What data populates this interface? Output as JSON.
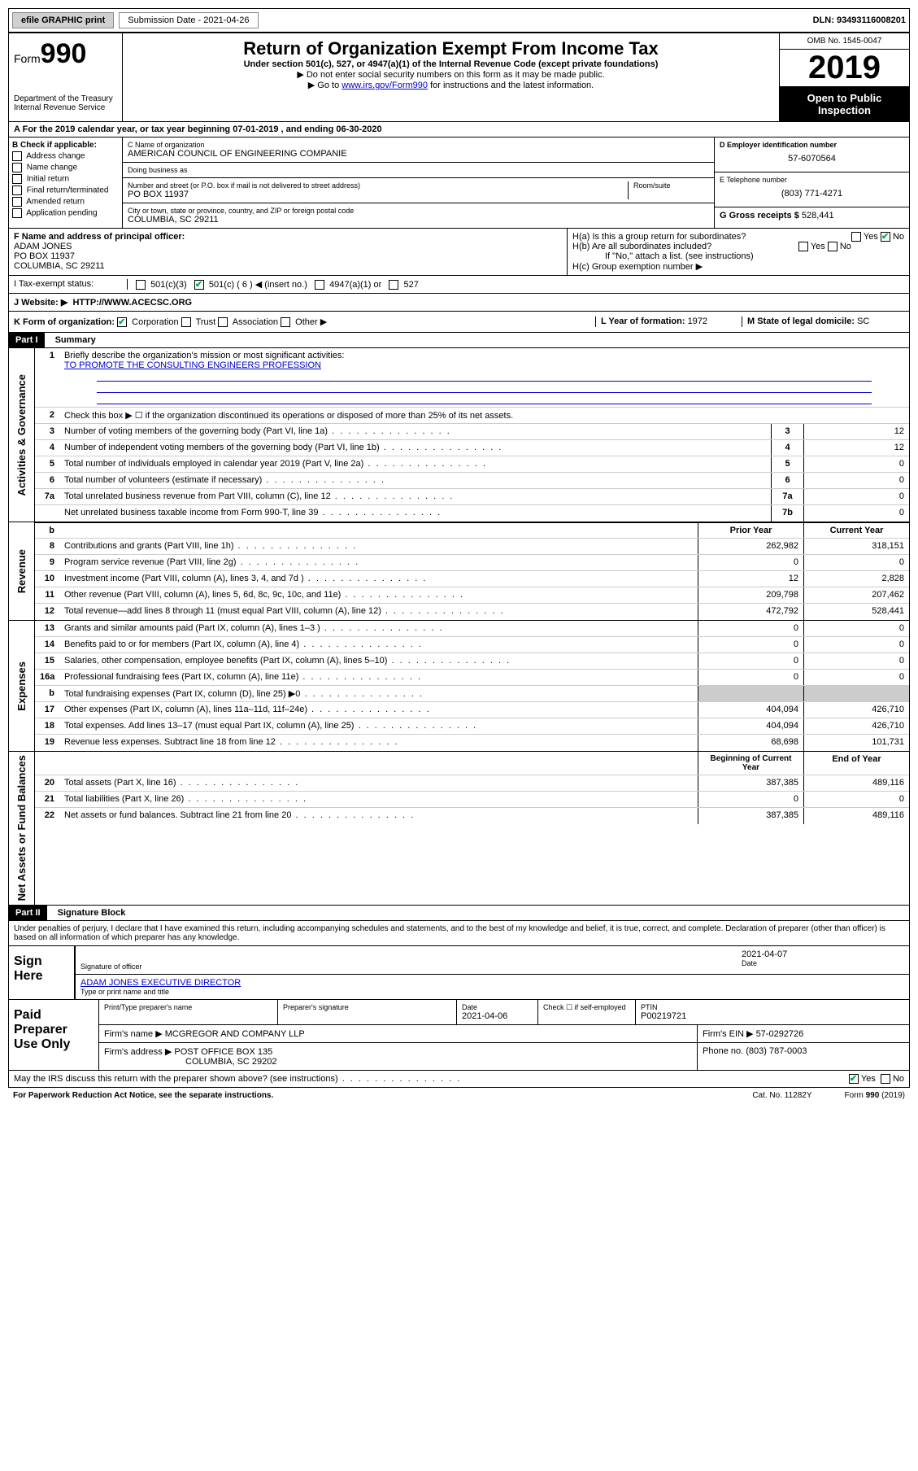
{
  "topbar": {
    "efile": "efile GRAPHIC print",
    "submission_label": "Submission Date - 2021-04-26",
    "dln": "DLN: 93493116008201"
  },
  "header": {
    "form_word": "Form",
    "form_num": "990",
    "dept": "Department of the Treasury\nInternal Revenue Service",
    "title": "Return of Organization Exempt From Income Tax",
    "subtitle": "Under section 501(c), 527, or 4947(a)(1) of the Internal Revenue Code (except private foundations)",
    "note1": "▶ Do not enter social security numbers on this form as it may be made public.",
    "note2_pre": "▶ Go to ",
    "note2_link": "www.irs.gov/Form990",
    "note2_post": " for instructions and the latest information.",
    "omb": "OMB No. 1545-0047",
    "year": "2019",
    "inspection": "Open to Public Inspection"
  },
  "period": {
    "text": "For the 2019 calendar year, or tax year beginning 07-01-2019   , and ending 06-30-2020"
  },
  "checkboxes_b": {
    "label": "B Check if applicable:",
    "items": [
      "Address change",
      "Name change",
      "Initial return",
      "Final return/terminated",
      "Amended return",
      "Application pending"
    ]
  },
  "org": {
    "name_label": "C Name of organization",
    "name": "AMERICAN COUNCIL OF ENGINEERING COMPANIE",
    "dba_label": "Doing business as",
    "dba": "",
    "street_label": "Number and street (or P.O. box if mail is not delivered to street address)",
    "room_label": "Room/suite",
    "street": "PO BOX 11937",
    "city_label": "City or town, state or province, country, and ZIP or foreign postal code",
    "city": "COLUMBIA, SC  29211"
  },
  "ein": {
    "label": "D Employer identification number",
    "value": "57-6070564"
  },
  "phone": {
    "label": "E Telephone number",
    "value": "(803) 771-4271"
  },
  "gross": {
    "label": "G Gross receipts $",
    "value": "528,441"
  },
  "officer": {
    "label": "F Name and address of principal officer:",
    "name": "ADAM JONES",
    "addr1": "PO BOX 11937",
    "addr2": "COLUMBIA, SC  29211"
  },
  "h": {
    "a_label": "H(a)  Is this a group return for subordinates?",
    "a_yes": "Yes",
    "a_no": "No",
    "b_label": "H(b)  Are all subordinates included?",
    "b_note": "If \"No,\" attach a list. (see instructions)",
    "c_label": "H(c)  Group exemption number ▶"
  },
  "status": {
    "label": "Tax-exempt status:",
    "opt1": "501(c)(3)",
    "opt2": "501(c) ( 6 ) ◀ (insert no.)",
    "opt3": "4947(a)(1) or",
    "opt4": "527"
  },
  "website": {
    "label": "J   Website: ▶",
    "value": "HTTP://WWW.ACECSC.ORG"
  },
  "formorg": {
    "label": "K Form of organization:",
    "opts": [
      "Corporation",
      "Trust",
      "Association",
      "Other ▶"
    ],
    "year_label": "L Year of formation:",
    "year": "1972",
    "state_label": "M State of legal domicile:",
    "state": "SC"
  },
  "part1": {
    "header": "Part I",
    "title": "Summary",
    "mission_label": "Briefly describe the organization's mission or most significant activities:",
    "mission": "TO PROMOTE THE CONSULTING ENGINEERS PROFESSION",
    "line2": "Check this box ▶ ☐  if the organization discontinued its operations or disposed of more than 25% of its net assets."
  },
  "governance_lines": [
    {
      "n": "3",
      "t": "Number of voting members of the governing body (Part VI, line 1a)",
      "box": "3",
      "v": "12"
    },
    {
      "n": "4",
      "t": "Number of independent voting members of the governing body (Part VI, line 1b)",
      "box": "4",
      "v": "12"
    },
    {
      "n": "5",
      "t": "Total number of individuals employed in calendar year 2019 (Part V, line 2a)",
      "box": "5",
      "v": "0"
    },
    {
      "n": "6",
      "t": "Total number of volunteers (estimate if necessary)",
      "box": "6",
      "v": "0"
    },
    {
      "n": "7a",
      "t": "Total unrelated business revenue from Part VIII, column (C), line 12",
      "box": "7a",
      "v": "0"
    },
    {
      "n": "",
      "t": "Net unrelated business taxable income from Form 990-T, line 39",
      "box": "7b",
      "v": "0"
    }
  ],
  "year_cols": {
    "prior": "Prior Year",
    "current": "Current Year"
  },
  "revenue_lines": [
    {
      "n": "8",
      "t": "Contributions and grants (Part VIII, line 1h)",
      "p": "262,982",
      "c": "318,151"
    },
    {
      "n": "9",
      "t": "Program service revenue (Part VIII, line 2g)",
      "p": "0",
      "c": "0"
    },
    {
      "n": "10",
      "t": "Investment income (Part VIII, column (A), lines 3, 4, and 7d )",
      "p": "12",
      "c": "2,828"
    },
    {
      "n": "11",
      "t": "Other revenue (Part VIII, column (A), lines 5, 6d, 8c, 9c, 10c, and 11e)",
      "p": "209,798",
      "c": "207,462"
    },
    {
      "n": "12",
      "t": "Total revenue—add lines 8 through 11 (must equal Part VIII, column (A), line 12)",
      "p": "472,792",
      "c": "528,441"
    }
  ],
  "expense_lines": [
    {
      "n": "13",
      "t": "Grants and similar amounts paid (Part IX, column (A), lines 1–3 )",
      "p": "0",
      "c": "0"
    },
    {
      "n": "14",
      "t": "Benefits paid to or for members (Part IX, column (A), line 4)",
      "p": "0",
      "c": "0"
    },
    {
      "n": "15",
      "t": "Salaries, other compensation, employee benefits (Part IX, column (A), lines 5–10)",
      "p": "0",
      "c": "0"
    },
    {
      "n": "16a",
      "t": "Professional fundraising fees (Part IX, column (A), line 11e)",
      "p": "0",
      "c": "0"
    },
    {
      "n": "b",
      "t": "Total fundraising expenses (Part IX, column (D), line 25) ▶0",
      "p": "",
      "c": "",
      "shaded": true
    },
    {
      "n": "17",
      "t": "Other expenses (Part IX, column (A), lines 11a–11d, 11f–24e)",
      "p": "404,094",
      "c": "426,710"
    },
    {
      "n": "18",
      "t": "Total expenses. Add lines 13–17 (must equal Part IX, column (A), line 25)",
      "p": "404,094",
      "c": "426,710"
    },
    {
      "n": "19",
      "t": "Revenue less expenses. Subtract line 18 from line 12",
      "p": "68,698",
      "c": "101,731"
    }
  ],
  "balance_cols": {
    "begin": "Beginning of Current Year",
    "end": "End of Year"
  },
  "balance_lines": [
    {
      "n": "20",
      "t": "Total assets (Part X, line 16)",
      "p": "387,385",
      "c": "489,116"
    },
    {
      "n": "21",
      "t": "Total liabilities (Part X, line 26)",
      "p": "0",
      "c": "0"
    },
    {
      "n": "22",
      "t": "Net assets or fund balances. Subtract line 21 from line 20",
      "p": "387,385",
      "c": "489,116"
    }
  ],
  "part2": {
    "header": "Part II",
    "title": "Signature Block",
    "declaration": "Under penalties of perjury, I declare that I have examined this return, including accompanying schedules and statements, and to the best of my knowledge and belief, it is true, correct, and complete. Declaration of preparer (other than officer) is based on all information of which preparer has any knowledge."
  },
  "sign": {
    "here": "Sign Here",
    "officer_sig": "Signature of officer",
    "date": "2021-04-07",
    "date_label": "Date",
    "name": "ADAM JONES  EXECUTIVE DIRECTOR",
    "name_label": "Type or print name and title"
  },
  "preparer": {
    "label": "Paid Preparer Use Only",
    "name_label": "Print/Type preparer's name",
    "sig_label": "Preparer's signature",
    "date_label": "Date",
    "date": "2021-04-06",
    "self_label": "Check ☐ if self-employed",
    "ptin_label": "PTIN",
    "ptin": "P00219721",
    "firm_name_label": "Firm's name    ▶",
    "firm_name": "MCGREGOR AND COMPANY LLP",
    "firm_ein_label": "Firm's EIN ▶",
    "firm_ein": "57-0292726",
    "firm_addr_label": "Firm's address ▶",
    "firm_addr1": "POST OFFICE BOX 135",
    "firm_addr2": "COLUMBIA, SC  29202",
    "phone_label": "Phone no.",
    "phone": "(803) 787-0003"
  },
  "footer": {
    "discuss": "May the IRS discuss this return with the preparer shown above? (see instructions)",
    "paperwork": "For Paperwork Reduction Act Notice, see the separate instructions.",
    "cat": "Cat. No. 11282Y",
    "form": "Form 990 (2019)"
  },
  "side_labels": {
    "gov": "Activities & Governance",
    "rev": "Revenue",
    "exp": "Expenses",
    "bal": "Net Assets or Fund Balances"
  }
}
